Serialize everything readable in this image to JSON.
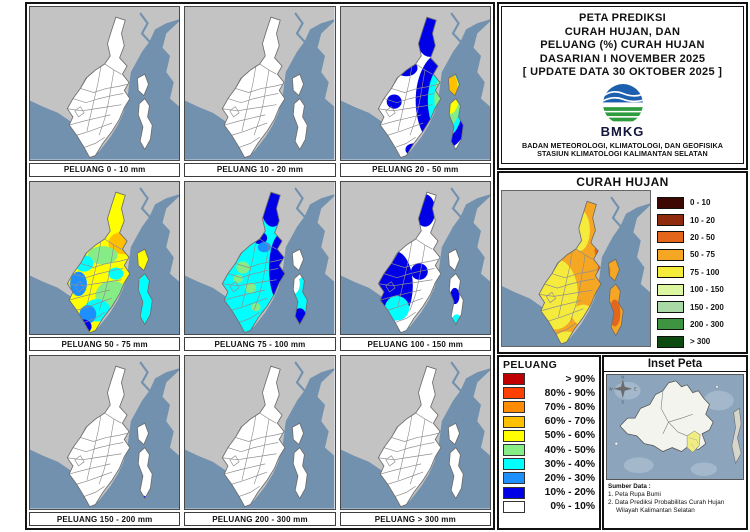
{
  "palette": {
    "p90": "#C00000",
    "p80": "#FF4000",
    "p70": "#FF8C00",
    "p60": "#FFC000",
    "p50": "#FFFF00",
    "p40": "#86EC86",
    "p30": "#00FFFF",
    "p20": "#1E8FFF",
    "p10": "#0000E6",
    "p0": "#FFFFFF",
    "r1": "#3D0801",
    "r2": "#8F2A0D",
    "r3": "#E4661B",
    "r4": "#F5A623",
    "r5": "#F5EB3C",
    "r6": "#DDF6A0",
    "r7": "#A9D9A4",
    "r8": "#3E9440",
    "r9": "#0C4A12",
    "sea": "#7191AE",
    "land": "#C3C3C3",
    "outline": "#6e6e6e",
    "inset_sea": "#8CA5BD",
    "inset_sea_light": "#A3B8CA",
    "inset_island": "#F4F4EE",
    "inset_highlight": "#F0EE82",
    "logo_blue": "#1D5FAF",
    "logo_green": "#2E9B3F"
  },
  "title_panel": {
    "line1": "PETA PREDIKSI",
    "line2": "CURAH HUJAN, DAN",
    "line3": "PELUANG (%) CURAH HUJAN",
    "line4": "DASARIAN I NOVEMBER 2025",
    "line5": "[ UPDATE DATA 30 OKTOBER 2025 ]",
    "logo_label": "BMKG",
    "org_line1": "BADAN METEOROLOGI, KLIMATOLOGI, DAN GEOFISIKA",
    "org_line2": "STASIUN KLIMATOLOGI KALIMANTAN SELATAN"
  },
  "probability_maps": [
    {
      "label": "PELUANG 0 - 10 mm",
      "base": "p0"
    },
    {
      "label": "PELUANG 10 - 20 mm",
      "base": "p0"
    },
    {
      "label": "PELUANG 20 - 50 mm",
      "base": "p0"
    },
    {
      "label": "PELUANG 50 - 75 mm",
      "base": "p50"
    },
    {
      "label": "PELUANG 75 - 100 mm",
      "base": "p30"
    },
    {
      "label": "PELUANG 100 - 150 mm",
      "base": "p0"
    },
    {
      "label": "PELUANG 150 - 200 mm",
      "base": "p0"
    },
    {
      "label": "PELUANG 200 - 300 mm",
      "base": "p0"
    },
    {
      "label": "PELUANG > 300 mm",
      "base": "p0"
    }
  ],
  "rainfall_panel": {
    "title": "CURAH HUJAN",
    "legend": [
      {
        "range": "0 - 10",
        "key": "r1"
      },
      {
        "range": "10 - 20",
        "key": "r2"
      },
      {
        "range": "20 - 50",
        "key": "r3"
      },
      {
        "range": "50 - 75",
        "key": "r4"
      },
      {
        "range": "75 - 100",
        "key": "r5"
      },
      {
        "range": "100 - 150",
        "key": "r6"
      },
      {
        "range": "150 - 200",
        "key": "r7"
      },
      {
        "range": "200 - 300",
        "key": "r8"
      },
      {
        "range": "> 300",
        "key": "r9"
      }
    ]
  },
  "probability_legend": {
    "title": "PELUANG",
    "entries": [
      {
        "range": "> 90%",
        "key": "p90"
      },
      {
        "range": "80% - 90%",
        "key": "p80"
      },
      {
        "range": "70% - 80%",
        "key": "p70"
      },
      {
        "range": "60% - 70%",
        "key": "p60"
      },
      {
        "range": "50% - 60%",
        "key": "p50"
      },
      {
        "range": "40% - 50%",
        "key": "p40"
      },
      {
        "range": "30% - 40%",
        "key": "p30"
      },
      {
        "range": "20% - 30%",
        "key": "p20"
      },
      {
        "range": "10% - 20%",
        "key": "p10"
      },
      {
        "range": "0% - 10%",
        "key": "p0"
      }
    ]
  },
  "inset_panel": {
    "title": "Inset Peta",
    "compass": {
      "n": "N",
      "w": "W",
      "e": "E",
      "s": "S"
    },
    "source_title": "Sumber Data :",
    "source_line1": "1. Peta Rupa Bumi",
    "source_line2": "2. Data Prediksi Probabilitas Curah Hujan",
    "source_line3": "Wilayah Kalimantan Selatan"
  }
}
